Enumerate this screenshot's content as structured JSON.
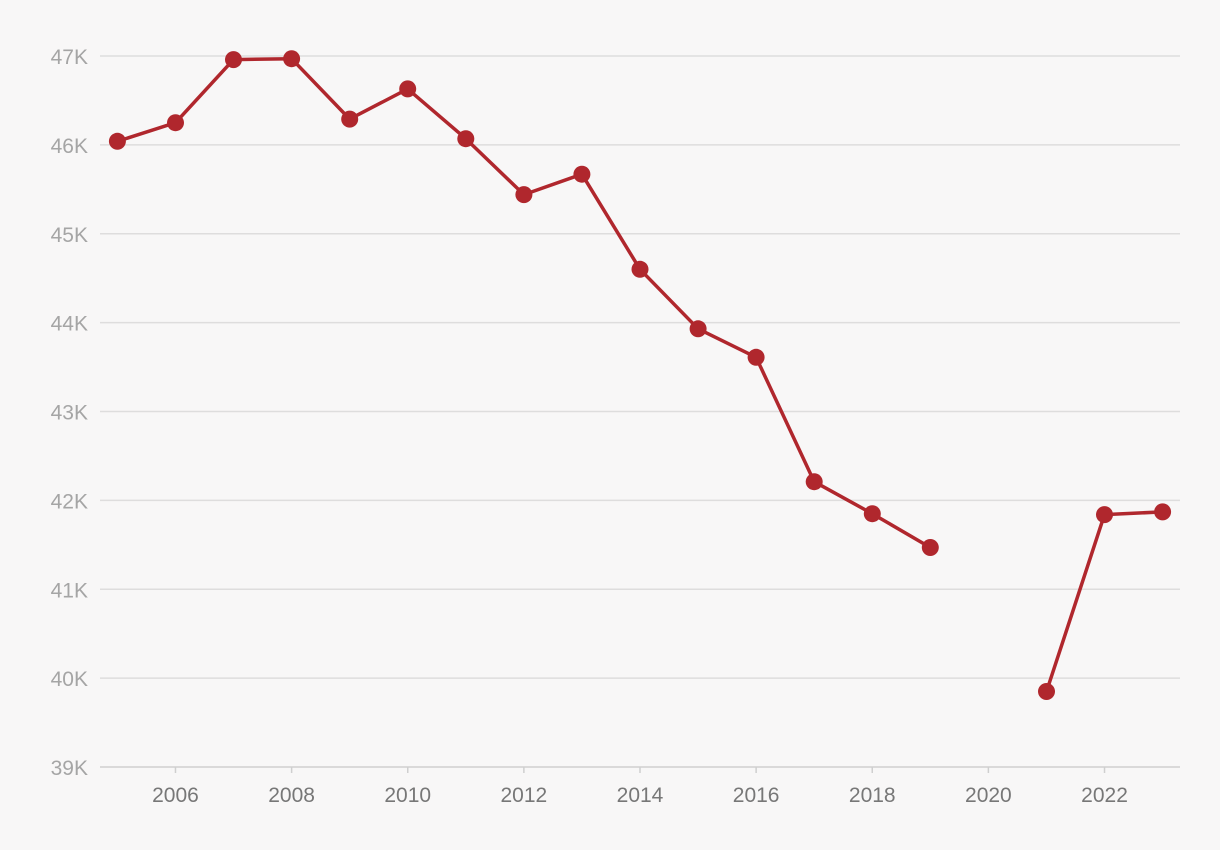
{
  "colors": {
    "background": "#f8f7f7",
    "series": "#b0272d",
    "grid": "#dedddd"
  },
  "chart_data": {
    "type": "line",
    "title": "",
    "xlabel": "",
    "ylabel": "",
    "x": [
      2005,
      2006,
      2007,
      2008,
      2009,
      2010,
      2011,
      2012,
      2013,
      2014,
      2015,
      2016,
      2017,
      2018,
      2019,
      2020,
      2021,
      2022,
      2023
    ],
    "series": [
      {
        "values": [
          46040,
          46250,
          46960,
          46970,
          46290,
          46630,
          46070,
          45440,
          45670,
          44600,
          43930,
          43610,
          42210,
          41850,
          41470,
          null,
          39850,
          41840,
          41870
        ]
      }
    ],
    "xlim": [
      2004.7,
      2023.3
    ],
    "ylim": [
      39000,
      47000
    ],
    "y_ticks": [
      39000,
      40000,
      41000,
      42000,
      43000,
      44000,
      45000,
      46000,
      47000
    ],
    "y_tick_labels": [
      "39K",
      "40K",
      "41K",
      "42K",
      "43K",
      "44K",
      "45K",
      "46K",
      "47K"
    ],
    "x_ticks": [
      2006,
      2008,
      2010,
      2012,
      2014,
      2016,
      2018,
      2020,
      2022
    ],
    "x_tick_labels": [
      "2006",
      "2008",
      "2010",
      "2012",
      "2014",
      "2016",
      "2018",
      "2020",
      "2022"
    ],
    "grid": true,
    "legend": "none",
    "markers": true
  }
}
